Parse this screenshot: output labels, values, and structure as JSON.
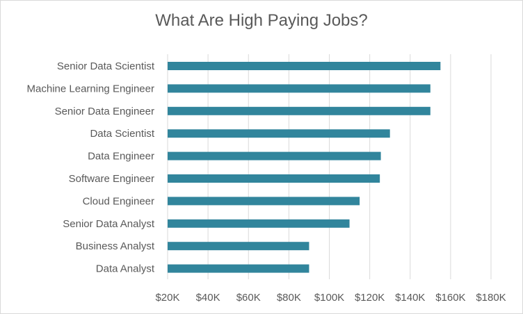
{
  "chart_data": {
    "type": "bar",
    "orientation": "horizontal",
    "title": "What Are High Paying Jobs?",
    "xlabel": "",
    "ylabel": "",
    "categories": [
      "Senior Data Scientist",
      "Machine Learning Engineer",
      "Senior Data Engineer",
      "Data Scientist",
      "Data Engineer",
      "Software Engineer",
      "Cloud Engineer",
      "Senior Data Analyst",
      "Business Analyst",
      "Data Analyst"
    ],
    "values": [
      155000,
      150000,
      150000,
      130000,
      125500,
      125000,
      115000,
      110000,
      90000,
      90000
    ],
    "xlim": [
      20000,
      180000
    ],
    "xticks": [
      20000,
      40000,
      60000,
      80000,
      100000,
      120000,
      140000,
      160000,
      180000
    ],
    "xtick_labels": [
      "$20K",
      "$40K",
      "$60K",
      "$80K",
      "$100K",
      "$120K",
      "$140K",
      "$160K",
      "$180K"
    ],
    "grid": "vertical",
    "legend": "none",
    "bar_color": "#31859c",
    "grid_color": "#d9d9d9"
  }
}
